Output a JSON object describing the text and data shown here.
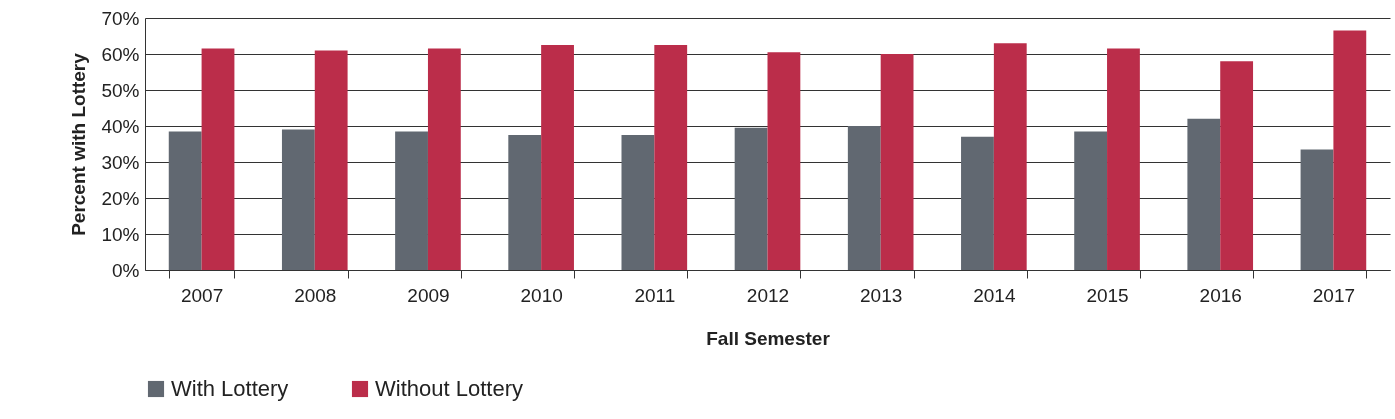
{
  "chart_data": {
    "type": "bar",
    "xlabel": "Fall Semester",
    "ylabel": "Percent with Lottery",
    "categories": [
      "2007",
      "2008",
      "2009",
      "2010",
      "2011",
      "2012",
      "2013",
      "2014",
      "2015",
      "2016",
      "2017"
    ],
    "series": [
      {
        "name": "With Lottery",
        "color": "#616871",
        "values": [
          38.5,
          39,
          38.5,
          37.5,
          37.5,
          39.5,
          40,
          37,
          38.5,
          42,
          33.5
        ]
      },
      {
        "name": "Without Lottery",
        "color": "#bb2d4a",
        "values": [
          61.5,
          61,
          61.5,
          62.5,
          62.5,
          60.5,
          60,
          63,
          61.5,
          58,
          66.5
        ]
      }
    ],
    "ylim": [
      0,
      70
    ],
    "yticks": [
      {
        "value": 0,
        "label": "0%"
      },
      {
        "value": 10,
        "label": "10%"
      },
      {
        "value": 20,
        "label": "20%"
      },
      {
        "value": 30,
        "label": "30%"
      },
      {
        "value": 40,
        "label": "40%"
      },
      {
        "value": 50,
        "label": "50%"
      },
      {
        "value": 60,
        "label": "60%"
      },
      {
        "value": 70,
        "label": "70%"
      }
    ],
    "grid": "y",
    "legend": "bottom"
  }
}
